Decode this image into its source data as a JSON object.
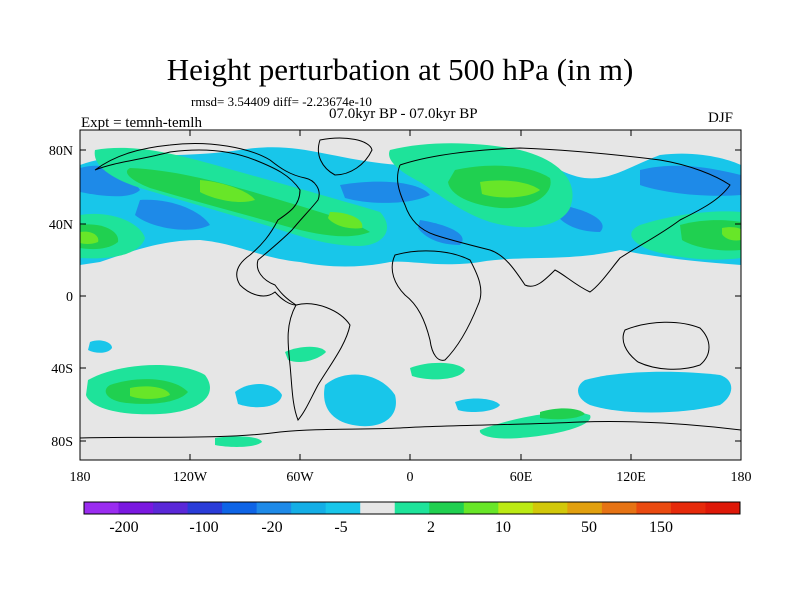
{
  "title": "Height perturbation at 500 hPa (in m)",
  "stats": "rmsd= 3.54409 diff= -2.23674e-10",
  "period": "07.0kyr BP - 07.0kyr BP",
  "experiment": "Expt = temnh-temlh",
  "season": "DJF",
  "map": {
    "lat_ticks": [
      "80N",
      "40N",
      "0",
      "40S",
      "80S"
    ],
    "lon_ticks": [
      "180",
      "120W",
      "60W",
      "0",
      "60E",
      "120E",
      "180"
    ],
    "background_color": "#e6e6e6"
  },
  "colorbar": {
    "colors": [
      "#9a2cf0",
      "#7a18e0",
      "#5a28d8",
      "#2a3cd8",
      "#0e64e6",
      "#1e8ae8",
      "#14aee6",
      "#18c6ea",
      "#e6e6e6",
      "#1ee39a",
      "#20d050",
      "#68e628",
      "#bcea14",
      "#d2c80a",
      "#e2a00e",
      "#e67314",
      "#ea4a10",
      "#e62a0a",
      "#de1808"
    ],
    "labels": [
      "-200",
      "-100",
      "-20",
      "-5",
      "2",
      "10",
      "50",
      "150"
    ]
  }
}
